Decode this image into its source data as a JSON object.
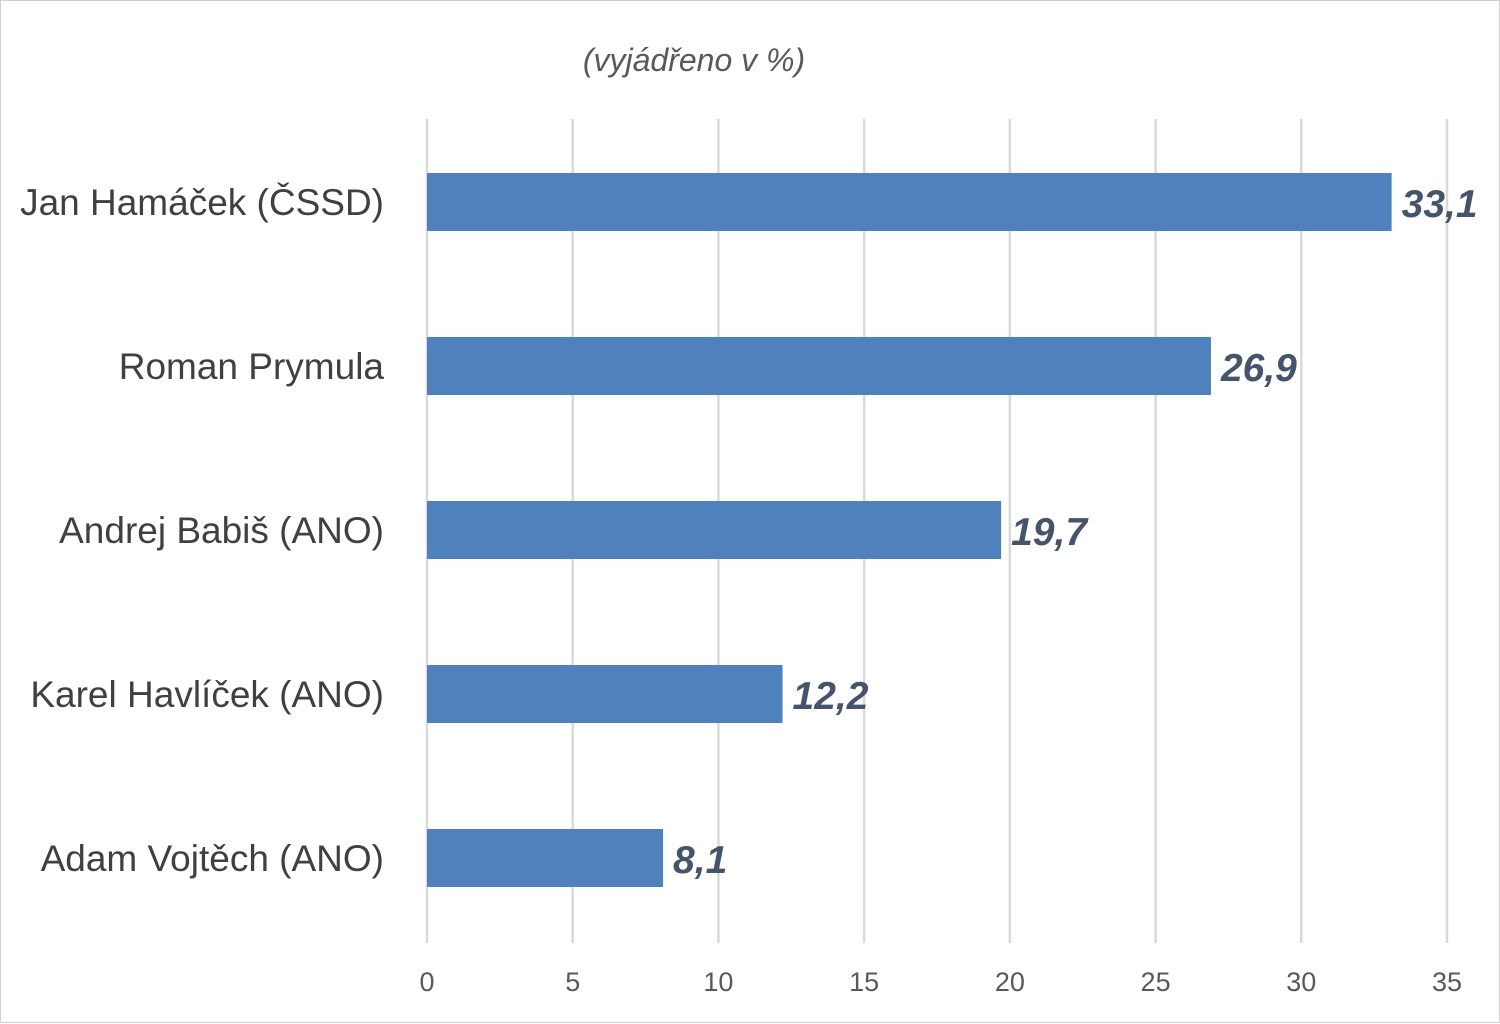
{
  "chart_data": {
    "type": "bar",
    "orientation": "horizontal",
    "subtitle": "(vyjádřeno v %)",
    "categories": [
      "Jan Hamáček (ČSSD)",
      "Roman Prymula",
      "Andrej Babiš (ANO)",
      "Karel Havlíček (ANO)",
      "Adam Vojtěch (ANO)"
    ],
    "values": [
      33.1,
      26.9,
      19.7,
      12.2,
      8.1
    ],
    "data_labels": [
      "33,1",
      "26,9",
      "19,7",
      "12,2",
      "8,1"
    ],
    "xlim": [
      0,
      35
    ],
    "xticks": [
      0,
      5,
      10,
      15,
      20,
      25,
      30,
      35
    ],
    "grid": "vertical",
    "legend": "none",
    "bar_color": "#4f81bd",
    "label_color": "#44546a"
  }
}
